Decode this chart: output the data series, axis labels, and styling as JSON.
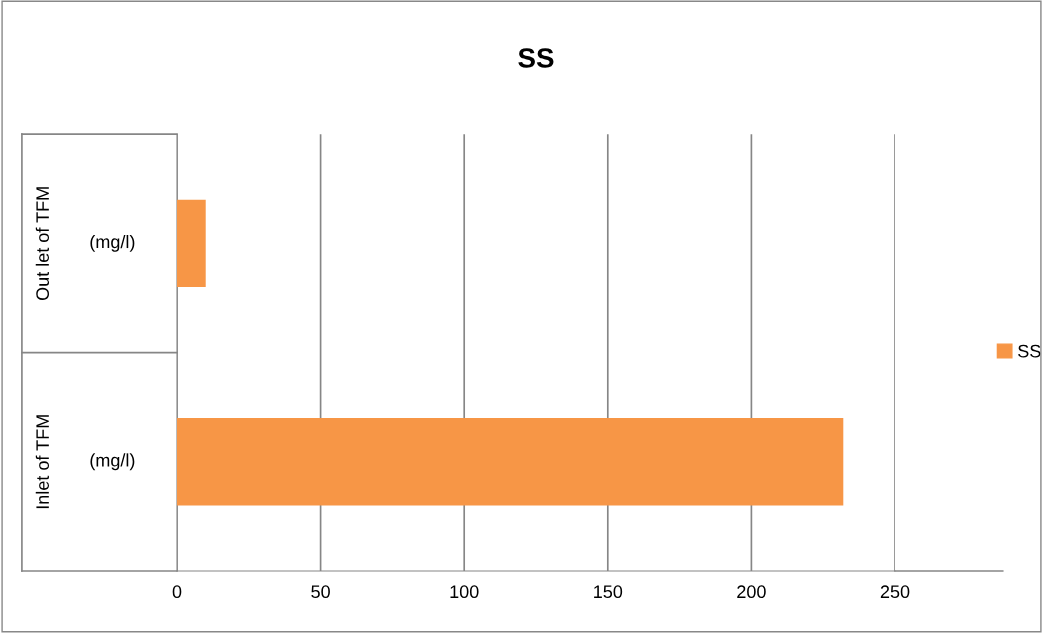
{
  "chart_data": {
    "type": "bar",
    "orientation": "horizontal",
    "title": "SS",
    "categories": [
      "(mg/l)",
      "(mg/l)"
    ],
    "annotations": [
      "Out let of TFM",
      "Inlet of TFM"
    ],
    "series": [
      {
        "name": "SS",
        "color": "#f79646",
        "values": [
          10,
          232
        ]
      }
    ],
    "xlim": [
      0,
      250
    ],
    "xticks": [
      0,
      50,
      100,
      150,
      200,
      250
    ],
    "grid": "x",
    "legend": "right"
  }
}
